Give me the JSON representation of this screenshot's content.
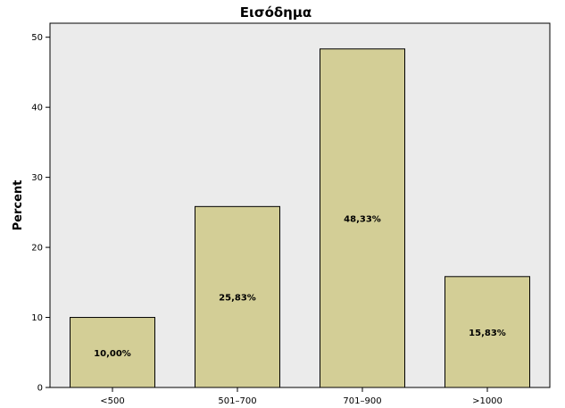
{
  "chart_data": {
    "type": "bar",
    "title": "Εισόδημα",
    "xlabel": "",
    "ylabel": "Percent",
    "categories": [
      "<500",
      "501–700",
      "701–900",
      ">1000"
    ],
    "values": [
      10.0,
      25.83,
      48.33,
      15.83
    ],
    "data_labels": [
      "10,00%",
      "25,83%",
      "48,33%",
      "15,83%"
    ],
    "ylim": [
      0,
      52
    ],
    "yticks": [
      0,
      10,
      20,
      30,
      40,
      50
    ],
    "grid": false,
    "legend": "none",
    "colors": {
      "plot_background": "#ebebeb",
      "bar_fill": "#d3ce96",
      "bar_stroke": "#000000"
    }
  }
}
